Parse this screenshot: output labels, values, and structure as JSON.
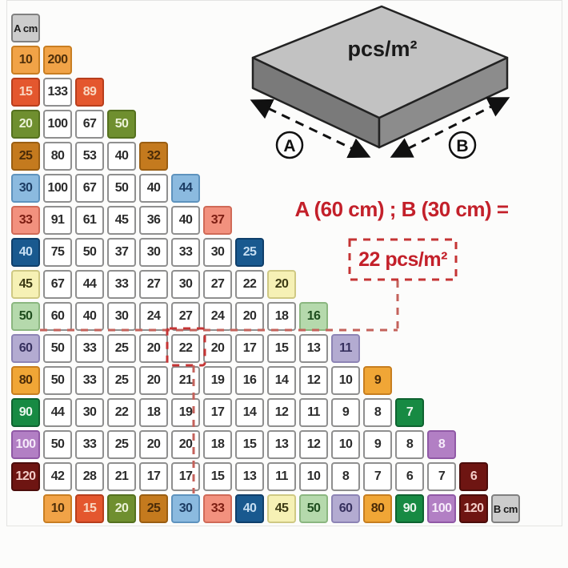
{
  "chart_data": {
    "type": "table",
    "title": "pcs/m²",
    "corner_label": "A cm",
    "b_axis_label": "B cm",
    "a_values": [
      10,
      15,
      20,
      25,
      30,
      33,
      40,
      45,
      50,
      60,
      80,
      90,
      100,
      120
    ],
    "b_values": [
      10,
      15,
      20,
      25,
      30,
      33,
      40,
      45,
      50,
      60,
      80,
      90,
      100,
      120
    ],
    "matrix": [
      [
        200
      ],
      [
        133,
        89
      ],
      [
        100,
        67,
        50
      ],
      [
        80,
        53,
        40,
        32
      ],
      [
        100,
        67,
        50,
        40,
        44
      ],
      [
        91,
        61,
        45,
        36,
        40,
        37
      ],
      [
        75,
        50,
        37,
        30,
        33,
        30,
        25
      ],
      [
        67,
        44,
        33,
        27,
        30,
        27,
        22,
        20
      ],
      [
        60,
        40,
        30,
        24,
        27,
        24,
        20,
        18,
        16
      ],
      [
        50,
        33,
        25,
        20,
        22,
        20,
        17,
        15,
        13,
        11
      ],
      [
        50,
        33,
        25,
        20,
        21,
        19,
        16,
        14,
        12,
        10,
        9
      ],
      [
        44,
        30,
        22,
        18,
        19,
        17,
        14,
        12,
        11,
        9,
        8,
        7
      ],
      [
        50,
        33,
        25,
        20,
        20,
        18,
        15,
        13,
        12,
        10,
        9,
        8,
        8
      ],
      [
        42,
        28,
        21,
        17,
        17,
        15,
        13,
        11,
        10,
        8,
        7,
        6,
        7,
        6
      ]
    ],
    "annotation": {
      "highlight_a": 60,
      "highlight_b": 30,
      "highlight_value": 22
    },
    "legend_position": "none",
    "grid": "off"
  },
  "callout": {
    "formula": "A (60 cm) ; B (30 cm) =",
    "result": "22 pcs/m²"
  },
  "illustration": {
    "surface_label": "pcs/m²",
    "arrow_a_label": "A",
    "arrow_b_label": "B"
  },
  "palette": {
    "10": {
      "bg": "#F1A347",
      "border": "#C97E22",
      "text": "#50300A"
    },
    "15": {
      "bg": "#E4572E",
      "border": "#B83E1C",
      "text": "#F9D8C2"
    },
    "20": {
      "bg": "#6F8F2F",
      "border": "#55711F",
      "text": "#ECF2D8"
    },
    "25": {
      "bg": "#C47A1E",
      "border": "#9A5E12",
      "text": "#4A2B08"
    },
    "30": {
      "bg": "#8BBADF",
      "border": "#5E93BE",
      "text": "#1C3C63"
    },
    "33": {
      "bg": "#F2917E",
      "border": "#D06A57",
      "text": "#7C1D12"
    },
    "40": {
      "bg": "#19598F",
      "border": "#0F3F6B",
      "text": "#C6DEF2"
    },
    "45": {
      "bg": "#F6F1B5",
      "border": "#CFC984",
      "text": "#3C3A14"
    },
    "50": {
      "bg": "#B5D9AC",
      "border": "#8BB780",
      "text": "#1E4D1E"
    },
    "60": {
      "bg": "#B3ABD1",
      "border": "#8D84B5",
      "text": "#36305E"
    },
    "80": {
      "bg": "#F0A636",
      "border": "#C77E1F",
      "text": "#4A2B08"
    },
    "90": {
      "bg": "#178A43",
      "border": "#0E6330",
      "text": "#EAF6EE"
    },
    "100": {
      "bg": "#B27FC4",
      "border": "#9059A6",
      "text": "#F6EBFA"
    },
    "120": {
      "bg": "#6E1512",
      "border": "#4C0D0B",
      "text": "#F3CDC8"
    },
    "label": {
      "bg": "#CCCCCC",
      "border": "#808080",
      "text": "#1A1A1A"
    }
  },
  "colors": {
    "accent_red": "#C3202A",
    "dash_pink": "#C4625B",
    "dash_red": "#C53434",
    "tile_top": "#C2C2C2",
    "tile_left": "#7A7A7A",
    "tile_right": "#8C8C8C",
    "cell_border_gray": "#8F8F8F"
  }
}
